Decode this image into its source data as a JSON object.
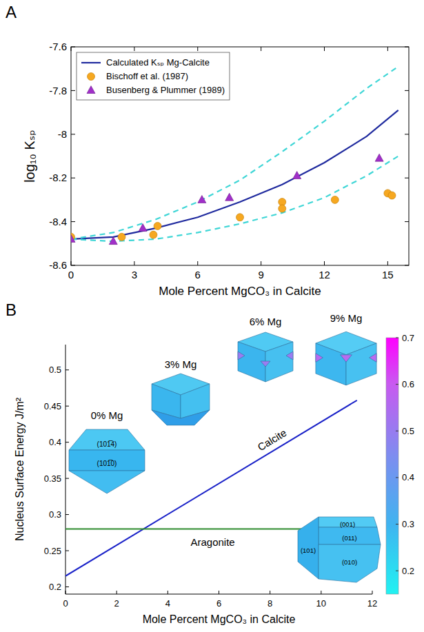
{
  "chart_data": [
    {
      "type": "line",
      "panel": "A",
      "x_label": "Mole Percent MgCO₃ in Calcite",
      "y_label": "log₁₀ Kₛₚ",
      "xlim": [
        0,
        16
      ],
      "ylim": [
        -8.6,
        -7.6
      ],
      "xticks": [
        0,
        3,
        6,
        9,
        12,
        15
      ],
      "yticks": [
        -8.6,
        -8.4,
        -8.2,
        -8,
        -7.8,
        -7.6
      ],
      "grid": false,
      "legend": "upper left",
      "series": [
        {
          "name": "Calculated Kₛₚ Mg-Calcite",
          "type": "line",
          "color": "#1f2a9e",
          "line_style": "solid",
          "x": [
            0,
            2,
            4,
            6,
            8,
            10,
            12,
            14,
            15.5
          ],
          "values": [
            -8.48,
            -8.47,
            -8.43,
            -8.38,
            -8.31,
            -8.23,
            -8.13,
            -8.01,
            -7.89
          ]
        },
        {
          "type": "line",
          "color": "#3fd6d6",
          "line_style": "dashed",
          "x": [
            0,
            2,
            4,
            6,
            8,
            10,
            12,
            14,
            15.5
          ],
          "values": [
            -8.48,
            -8.45,
            -8.39,
            -8.31,
            -8.21,
            -8.08,
            -7.94,
            -7.79,
            -7.69
          ]
        },
        {
          "type": "line",
          "color": "#3fd6d6",
          "line_style": "dashed",
          "x": [
            0,
            2,
            4,
            6,
            8,
            10,
            12,
            14,
            15.5
          ],
          "values": [
            -8.48,
            -8.49,
            -8.48,
            -8.45,
            -8.41,
            -8.36,
            -8.29,
            -8.19,
            -8.1
          ]
        },
        {
          "name": "Bischoff et al. (1987)",
          "type": "scatter",
          "marker": "circle",
          "color": "#f6a821",
          "x": [
            0,
            2.4,
            3.9,
            4.1,
            8,
            10,
            10,
            12.5,
            15,
            15.2
          ],
          "values": [
            -8.47,
            -8.47,
            -8.46,
            -8.42,
            -8.38,
            -8.31,
            -8.34,
            -8.3,
            -8.27,
            -8.28
          ]
        },
        {
          "name": "Busenberg & Plummer (1989)",
          "type": "scatter",
          "marker": "triangle",
          "color": "#a12fc9",
          "x": [
            0,
            2,
            3.4,
            6.2,
            7.5,
            10.7,
            14.6
          ],
          "values": [
            -8.48,
            -8.49,
            -8.43,
            -8.3,
            -8.29,
            -8.19,
            -8.11
          ]
        }
      ]
    },
    {
      "type": "line",
      "panel": "B",
      "x_label": "Mole Percent MgCO₃ in Calcite",
      "y_label": "Nucleus Surface Energy J/m²",
      "xlim": [
        0,
        12
      ],
      "ylim": [
        0.19,
        0.535
      ],
      "xticks": [
        0,
        2,
        4,
        6,
        8,
        10,
        12
      ],
      "yticks": [
        0.2,
        0.25,
        0.3,
        0.35,
        0.4,
        0.45,
        0.5
      ],
      "grid": false,
      "series": [
        {
          "name": "Calcite",
          "color": "#1a22c8",
          "line_style": "solid",
          "x": [
            0,
            11.4
          ],
          "values": [
            0.215,
            0.458
          ]
        },
        {
          "name": "Aragonite",
          "color": "#2a8a2a",
          "line_style": "solid",
          "x": [
            0,
            12
          ],
          "values": [
            0.28,
            0.28
          ]
        }
      ],
      "insets": [
        {
          "label": "0% Mg",
          "faces": [
            "(101̅4)",
            "(101̅0)"
          ]
        },
        {
          "label": "3% Mg"
        },
        {
          "label": "6% Mg"
        },
        {
          "label": "9% Mg"
        },
        {
          "faces": [
            "(001)",
            "(011)",
            "(101)",
            "(010)"
          ]
        }
      ],
      "colorbar": {
        "range": [
          0.15,
          0.7
        ],
        "ticks": [
          0.2,
          0.3,
          0.4,
          0.5,
          0.6,
          0.7
        ]
      }
    }
  ]
}
